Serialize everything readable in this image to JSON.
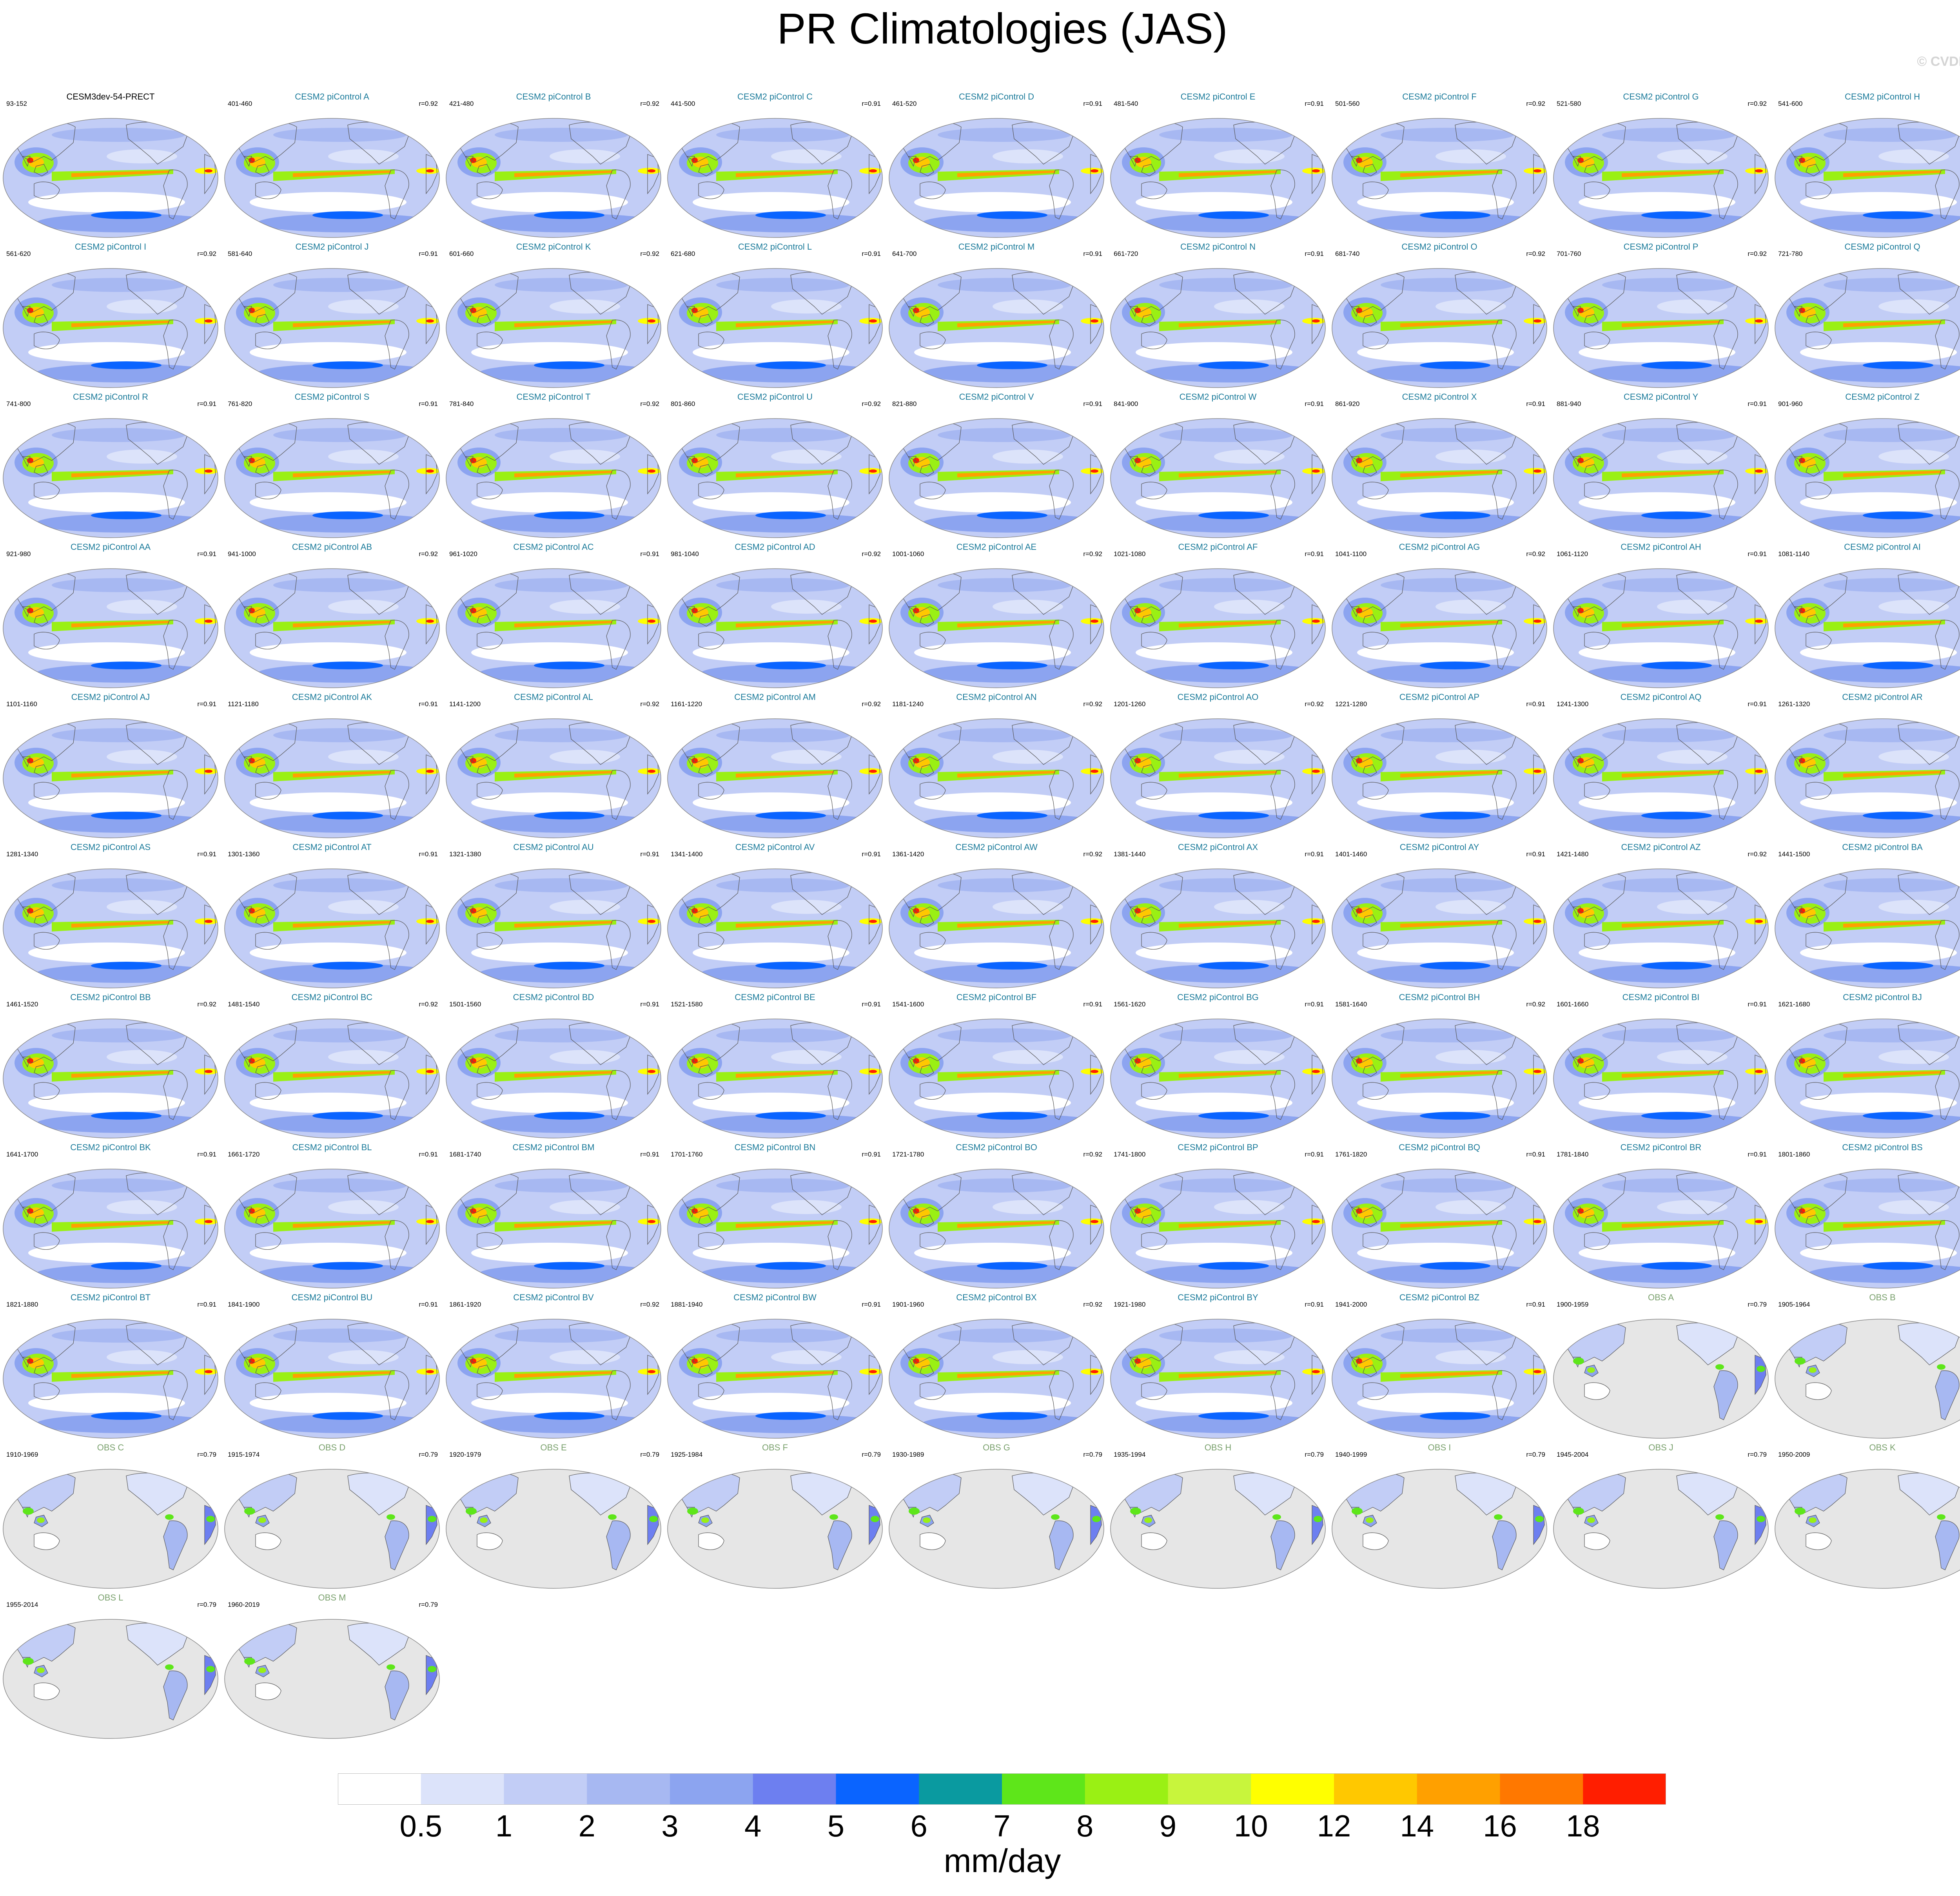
{
  "figure": {
    "title": "PR Climatologies (JAS)",
    "copyright": "© CVDP-LE"
  },
  "chart_data": {
    "type": "heatmap",
    "map_projection": "Robinson (Pacific-centered)",
    "colors": {
      "model_title": "#1a7a9a",
      "obs_title": "#79a06c",
      "reference_title": "#000000",
      "land_missing": "#e6e6e6"
    },
    "panels": [
      {
        "title": "CESM3dev-54-PRECT",
        "years": "93-152",
        "r": "",
        "kind": "reference"
      },
      {
        "title": "CESM2 piControl A",
        "years": "401-460",
        "r": "r=0.92",
        "kind": "model"
      },
      {
        "title": "CESM2 piControl B",
        "years": "421-480",
        "r": "r=0.92",
        "kind": "model"
      },
      {
        "title": "CESM2 piControl C",
        "years": "441-500",
        "r": "r=0.91",
        "kind": "model"
      },
      {
        "title": "CESM2 piControl D",
        "years": "461-520",
        "r": "r=0.91",
        "kind": "model"
      },
      {
        "title": "CESM2 piControl E",
        "years": "481-540",
        "r": "r=0.91",
        "kind": "model"
      },
      {
        "title": "CESM2 piControl F",
        "years": "501-560",
        "r": "r=0.92",
        "kind": "model"
      },
      {
        "title": "CESM2 piControl G",
        "years": "521-580",
        "r": "r=0.92",
        "kind": "model"
      },
      {
        "title": "CESM2 piControl H",
        "years": "541-600",
        "r": "r=0.91",
        "kind": "model"
      },
      {
        "title": "CESM2 piControl I",
        "years": "561-620",
        "r": "r=0.92",
        "kind": "model"
      },
      {
        "title": "CESM2 piControl J",
        "years": "581-640",
        "r": "r=0.91",
        "kind": "model"
      },
      {
        "title": "CESM2 piControl K",
        "years": "601-660",
        "r": "r=0.92",
        "kind": "model"
      },
      {
        "title": "CESM2 piControl L",
        "years": "621-680",
        "r": "r=0.91",
        "kind": "model"
      },
      {
        "title": "CESM2 piControl M",
        "years": "641-700",
        "r": "r=0.91",
        "kind": "model"
      },
      {
        "title": "CESM2 piControl N",
        "years": "661-720",
        "r": "r=0.91",
        "kind": "model"
      },
      {
        "title": "CESM2 piControl O",
        "years": "681-740",
        "r": "r=0.92",
        "kind": "model"
      },
      {
        "title": "CESM2 piControl P",
        "years": "701-760",
        "r": "r=0.92",
        "kind": "model"
      },
      {
        "title": "CESM2 piControl Q",
        "years": "721-780",
        "r": "r=0.92",
        "kind": "model"
      },
      {
        "title": "CESM2 piControl R",
        "years": "741-800",
        "r": "r=0.91",
        "kind": "model"
      },
      {
        "title": "CESM2 piControl S",
        "years": "761-820",
        "r": "r=0.91",
        "kind": "model"
      },
      {
        "title": "CESM2 piControl T",
        "years": "781-840",
        "r": "r=0.92",
        "kind": "model"
      },
      {
        "title": "CESM2 piControl U",
        "years": "801-860",
        "r": "r=0.92",
        "kind": "model"
      },
      {
        "title": "CESM2 piControl V",
        "years": "821-880",
        "r": "r=0.91",
        "kind": "model"
      },
      {
        "title": "CESM2 piControl W",
        "years": "841-900",
        "r": "r=0.91",
        "kind": "model"
      },
      {
        "title": "CESM2 piControl X",
        "years": "861-920",
        "r": "r=0.91",
        "kind": "model"
      },
      {
        "title": "CESM2 piControl Y",
        "years": "881-940",
        "r": "r=0.91",
        "kind": "model"
      },
      {
        "title": "CESM2 piControl Z",
        "years": "901-960",
        "r": "r=0.92",
        "kind": "model"
      },
      {
        "title": "CESM2 piControl AA",
        "years": "921-980",
        "r": "r=0.91",
        "kind": "model"
      },
      {
        "title": "CESM2 piControl AB",
        "years": "941-1000",
        "r": "r=0.92",
        "kind": "model"
      },
      {
        "title": "CESM2 piControl AC",
        "years": "961-1020",
        "r": "r=0.91",
        "kind": "model"
      },
      {
        "title": "CESM2 piControl AD",
        "years": "981-1040",
        "r": "r=0.92",
        "kind": "model"
      },
      {
        "title": "CESM2 piControl AE",
        "years": "1001-1060",
        "r": "r=0.92",
        "kind": "model"
      },
      {
        "title": "CESM2 piControl AF",
        "years": "1021-1080",
        "r": "r=0.91",
        "kind": "model"
      },
      {
        "title": "CESM2 piControl AG",
        "years": "1041-1100",
        "r": "r=0.92",
        "kind": "model"
      },
      {
        "title": "CESM2 piControl AH",
        "years": "1061-1120",
        "r": "r=0.91",
        "kind": "model"
      },
      {
        "title": "CESM2 piControl AI",
        "years": "1081-1140",
        "r": "r=0.91",
        "kind": "model"
      },
      {
        "title": "CESM2 piControl AJ",
        "years": "1101-1160",
        "r": "r=0.91",
        "kind": "model"
      },
      {
        "title": "CESM2 piControl AK",
        "years": "1121-1180",
        "r": "r=0.91",
        "kind": "model"
      },
      {
        "title": "CESM2 piControl AL",
        "years": "1141-1200",
        "r": "r=0.92",
        "kind": "model"
      },
      {
        "title": "CESM2 piControl AM",
        "years": "1161-1220",
        "r": "r=0.92",
        "kind": "model"
      },
      {
        "title": "CESM2 piControl AN",
        "years": "1181-1240",
        "r": "r=0.92",
        "kind": "model"
      },
      {
        "title": "CESM2 piControl AO",
        "years": "1201-1260",
        "r": "r=0.92",
        "kind": "model"
      },
      {
        "title": "CESM2 piControl AP",
        "years": "1221-1280",
        "r": "r=0.91",
        "kind": "model"
      },
      {
        "title": "CESM2 piControl AQ",
        "years": "1241-1300",
        "r": "r=0.91",
        "kind": "model"
      },
      {
        "title": "CESM2 piControl AR",
        "years": "1261-1320",
        "r": "r=0.91",
        "kind": "model"
      },
      {
        "title": "CESM2 piControl AS",
        "years": "1281-1340",
        "r": "r=0.91",
        "kind": "model"
      },
      {
        "title": "CESM2 piControl AT",
        "years": "1301-1360",
        "r": "r=0.91",
        "kind": "model"
      },
      {
        "title": "CESM2 piControl AU",
        "years": "1321-1380",
        "r": "r=0.91",
        "kind": "model"
      },
      {
        "title": "CESM2 piControl AV",
        "years": "1341-1400",
        "r": "r=0.91",
        "kind": "model"
      },
      {
        "title": "CESM2 piControl AW",
        "years": "1361-1420",
        "r": "r=0.92",
        "kind": "model"
      },
      {
        "title": "CESM2 piControl AX",
        "years": "1381-1440",
        "r": "r=0.91",
        "kind": "model"
      },
      {
        "title": "CESM2 piControl AY",
        "years": "1401-1460",
        "r": "r=0.91",
        "kind": "model"
      },
      {
        "title": "CESM2 piControl AZ",
        "years": "1421-1480",
        "r": "r=0.92",
        "kind": "model"
      },
      {
        "title": "CESM2 piControl BA",
        "years": "1441-1500",
        "r": "r=0.92",
        "kind": "model"
      },
      {
        "title": "CESM2 piControl BB",
        "years": "1461-1520",
        "r": "r=0.92",
        "kind": "model"
      },
      {
        "title": "CESM2 piControl BC",
        "years": "1481-1540",
        "r": "r=0.92",
        "kind": "model"
      },
      {
        "title": "CESM2 piControl BD",
        "years": "1501-1560",
        "r": "r=0.91",
        "kind": "model"
      },
      {
        "title": "CESM2 piControl BE",
        "years": "1521-1580",
        "r": "r=0.91",
        "kind": "model"
      },
      {
        "title": "CESM2 piControl BF",
        "years": "1541-1600",
        "r": "r=0.91",
        "kind": "model"
      },
      {
        "title": "CESM2 piControl BG",
        "years": "1561-1620",
        "r": "r=0.91",
        "kind": "model"
      },
      {
        "title": "CESM2 piControl BH",
        "years": "1581-1640",
        "r": "r=0.92",
        "kind": "model"
      },
      {
        "title": "CESM2 piControl BI",
        "years": "1601-1660",
        "r": "r=0.91",
        "kind": "model"
      },
      {
        "title": "CESM2 piControl BJ",
        "years": "1621-1680",
        "r": "r=0.91",
        "kind": "model"
      },
      {
        "title": "CESM2 piControl BK",
        "years": "1641-1700",
        "r": "r=0.91",
        "kind": "model"
      },
      {
        "title": "CESM2 piControl BL",
        "years": "1661-1720",
        "r": "r=0.91",
        "kind": "model"
      },
      {
        "title": "CESM2 piControl BM",
        "years": "1681-1740",
        "r": "r=0.91",
        "kind": "model"
      },
      {
        "title": "CESM2 piControl BN",
        "years": "1701-1760",
        "r": "r=0.91",
        "kind": "model"
      },
      {
        "title": "CESM2 piControl BO",
        "years": "1721-1780",
        "r": "r=0.92",
        "kind": "model"
      },
      {
        "title": "CESM2 piControl BP",
        "years": "1741-1800",
        "r": "r=0.91",
        "kind": "model"
      },
      {
        "title": "CESM2 piControl BQ",
        "years": "1761-1820",
        "r": "r=0.91",
        "kind": "model"
      },
      {
        "title": "CESM2 piControl BR",
        "years": "1781-1840",
        "r": "r=0.91",
        "kind": "model"
      },
      {
        "title": "CESM2 piControl BS",
        "years": "1801-1860",
        "r": "r=0.91",
        "kind": "model"
      },
      {
        "title": "CESM2 piControl BT",
        "years": "1821-1880",
        "r": "r=0.91",
        "kind": "model"
      },
      {
        "title": "CESM2 piControl BU",
        "years": "1841-1900",
        "r": "r=0.91",
        "kind": "model"
      },
      {
        "title": "CESM2 piControl BV",
        "years": "1861-1920",
        "r": "r=0.92",
        "kind": "model"
      },
      {
        "title": "CESM2 piControl BW",
        "years": "1881-1940",
        "r": "r=0.91",
        "kind": "model"
      },
      {
        "title": "CESM2 piControl BX",
        "years": "1901-1960",
        "r": "r=0.92",
        "kind": "model"
      },
      {
        "title": "CESM2 piControl BY",
        "years": "1921-1980",
        "r": "r=0.91",
        "kind": "model"
      },
      {
        "title": "CESM2 piControl BZ",
        "years": "1941-2000",
        "r": "r=0.91",
        "kind": "model"
      },
      {
        "title": "OBS A",
        "years": "1900-1959",
        "r": "r=0.79",
        "kind": "obs"
      },
      {
        "title": "OBS B",
        "years": "1905-1964",
        "r": "r=0.79",
        "kind": "obs"
      },
      {
        "title": "OBS C",
        "years": "1910-1969",
        "r": "r=0.79",
        "kind": "obs"
      },
      {
        "title": "OBS D",
        "years": "1915-1974",
        "r": "r=0.79",
        "kind": "obs"
      },
      {
        "title": "OBS E",
        "years": "1920-1979",
        "r": "r=0.79",
        "kind": "obs"
      },
      {
        "title": "OBS F",
        "years": "1925-1984",
        "r": "r=0.79",
        "kind": "obs"
      },
      {
        "title": "OBS G",
        "years": "1930-1989",
        "r": "r=0.79",
        "kind": "obs"
      },
      {
        "title": "OBS H",
        "years": "1935-1994",
        "r": "r=0.79",
        "kind": "obs"
      },
      {
        "title": "OBS I",
        "years": "1940-1999",
        "r": "r=0.79",
        "kind": "obs"
      },
      {
        "title": "OBS J",
        "years": "1945-2004",
        "r": "r=0.79",
        "kind": "obs"
      },
      {
        "title": "OBS K",
        "years": "1950-2009",
        "r": "r=0.79",
        "kind": "obs"
      },
      {
        "title": "OBS L",
        "years": "1955-2014",
        "r": "r=0.79",
        "kind": "obs"
      },
      {
        "title": "OBS M",
        "years": "1960-2019",
        "r": "r=0.79",
        "kind": "obs"
      }
    ],
    "colorbar": {
      "units": "mm/day",
      "tick_labels": [
        "0.5",
        "1",
        "2",
        "3",
        "4",
        "5",
        "6",
        "7",
        "8",
        "9",
        "10",
        "12",
        "14",
        "16",
        "18"
      ],
      "colors": [
        "#ffffff",
        "#dce3fa",
        "#c2cdf6",
        "#a7b8f2",
        "#8ca4f0",
        "#6d7ff0",
        "#0a64ff",
        "#0a9aa0",
        "#5ee61a",
        "#9af014",
        "#c8f53c",
        "#ffff00",
        "#ffc800",
        "#ffa000",
        "#ff7800",
        "#ff1e00"
      ]
    }
  }
}
